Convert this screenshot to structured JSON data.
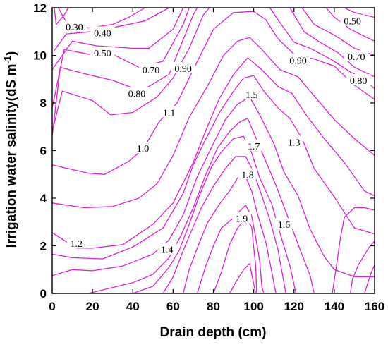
{
  "chart_data": {
    "type": "contour",
    "xlabel": "Drain depth (cm)",
    "ylabel": {
      "main": "Irrigation water salinity(dS m",
      "exponent": "-1",
      "close": ")"
    },
    "xlim": [
      0,
      160
    ],
    "ylim": [
      0,
      12
    ],
    "xticks": [
      "0",
      "20",
      "40",
      "60",
      "80",
      "100",
      "120",
      "140",
      "160"
    ],
    "yticks": [
      "0",
      "2",
      "4",
      "6",
      "8",
      "10",
      "12"
    ],
    "line_color": "#e020d8",
    "contour_labels": [
      {
        "text": "0.30",
        "x": 11,
        "y": 11.2
      },
      {
        "text": "0.40",
        "x": 25,
        "y": 10.95
      },
      {
        "text": "0.50",
        "x": 25,
        "y": 10.1
      },
      {
        "text": "0.70",
        "x": 49,
        "y": 9.4
      },
      {
        "text": "0.80",
        "x": 42,
        "y": 8.4
      },
      {
        "text": "0.90",
        "x": 65,
        "y": 9.45
      },
      {
        "text": "1.1",
        "x": 58,
        "y": 7.6
      },
      {
        "text": "1.0",
        "x": 45,
        "y": 6.1
      },
      {
        "text": "1.2",
        "x": 12,
        "y": 2.1
      },
      {
        "text": "1.4",
        "x": 57,
        "y": 1.85
      },
      {
        "text": "1.5",
        "x": 99,
        "y": 8.35
      },
      {
        "text": "1.7",
        "x": 100,
        "y": 6.2
      },
      {
        "text": "1.8",
        "x": 97,
        "y": 5.0
      },
      {
        "text": "1.9",
        "x": 94,
        "y": 3.15
      },
      {
        "text": "1.6",
        "x": 115,
        "y": 2.9
      },
      {
        "text": "1.3",
        "x": 120,
        "y": 6.35
      },
      {
        "text": "0.90",
        "x": 122,
        "y": 9.8
      },
      {
        "text": "0.50",
        "x": 149,
        "y": 11.45
      },
      {
        "text": "0.70",
        "x": 151,
        "y": 9.95
      },
      {
        "text": "0.80",
        "x": 152,
        "y": 8.95
      }
    ],
    "contours": [
      [
        [
          1,
          12
        ],
        [
          2,
          11.3
        ],
        [
          4,
          11.5
        ],
        [
          6,
          11.7
        ],
        [
          8,
          12
        ]
      ],
      [
        [
          3,
          12
        ],
        [
          7,
          11.4
        ],
        [
          18,
          11.15
        ],
        [
          30,
          11.3
        ],
        [
          38,
          11.6
        ],
        [
          46,
          12
        ]
      ],
      [
        [
          1,
          10.2
        ],
        [
          7,
          10.9
        ],
        [
          20,
          11.0
        ],
        [
          35,
          11.25
        ],
        [
          46,
          11.45
        ],
        [
          58,
          12
        ]
      ],
      [
        [
          0,
          9.4
        ],
        [
          10,
          10.6
        ],
        [
          22,
          10.4
        ],
        [
          40,
          10.3
        ],
        [
          48,
          10.3
        ],
        [
          60,
          11.1
        ],
        [
          65,
          12
        ]
      ],
      [
        [
          0,
          7.8
        ],
        [
          6,
          10.25
        ],
        [
          18,
          10.05
        ],
        [
          30,
          10.05
        ],
        [
          43,
          9.5
        ],
        [
          55,
          9.75
        ],
        [
          65,
          11.3
        ],
        [
          68,
          12
        ]
      ],
      [
        [
          0,
          6.6
        ],
        [
          4,
          9.5
        ],
        [
          15,
          9.25
        ],
        [
          30,
          8.95
        ],
        [
          44,
          8.5
        ],
        [
          58,
          9.2
        ],
        [
          70,
          11.7
        ],
        [
          72,
          12
        ]
      ],
      [
        [
          0,
          6.8
        ],
        [
          5,
          8.5
        ],
        [
          20,
          8.1
        ],
        [
          29,
          7.5
        ],
        [
          40,
          7.6
        ],
        [
          52,
          8.25
        ],
        [
          60,
          9.05
        ],
        [
          68,
          10.3
        ],
        [
          75,
          11.7
        ],
        [
          78,
          12
        ]
      ],
      [
        [
          0,
          5.4
        ],
        [
          18,
          5.05
        ],
        [
          26,
          5.0
        ],
        [
          38,
          5.55
        ],
        [
          45,
          6.05
        ],
        [
          53,
          7.2
        ],
        [
          62,
          8.0
        ],
        [
          70,
          9.4
        ],
        [
          80,
          11.1
        ],
        [
          90,
          11.8
        ],
        [
          100,
          11.85
        ],
        [
          106,
          11.5
        ],
        [
          112,
          10.7
        ],
        [
          120,
          10.05
        ],
        [
          130,
          9.85
        ],
        [
          140,
          9.55
        ],
        [
          150,
          8.75
        ],
        [
          160,
          8.15
        ]
      ],
      [
        [
          0,
          3.8
        ],
        [
          16,
          3.6
        ],
        [
          30,
          3.65
        ],
        [
          43,
          4.0
        ],
        [
          52,
          4.6
        ],
        [
          60,
          5.8
        ],
        [
          68,
          7.4
        ],
        [
          77,
          8.7
        ],
        [
          85,
          10.0
        ],
        [
          92,
          10.6
        ],
        [
          98,
          10.75
        ],
        [
          104,
          10.25
        ],
        [
          113,
          9.4
        ],
        [
          122,
          9.1
        ],
        [
          130,
          8.3
        ],
        [
          140,
          7.3
        ],
        [
          150,
          6.5
        ],
        [
          160,
          5.8
        ]
      ],
      [
        [
          0,
          2.55
        ],
        [
          12,
          1.9
        ],
        [
          20,
          1.9
        ],
        [
          35,
          2.05
        ],
        [
          50,
          2.9
        ],
        [
          60,
          3.8
        ],
        [
          70,
          5.5
        ],
        [
          77,
          7.0
        ],
        [
          83,
          8.2
        ],
        [
          90,
          9.2
        ],
        [
          97,
          9.9
        ],
        [
          104,
          9.4
        ],
        [
          112,
          8.7
        ],
        [
          119,
          8.4
        ],
        [
          126,
          7.5
        ],
        [
          135,
          6.5
        ],
        [
          145,
          5.5
        ],
        [
          155,
          4.3
        ],
        [
          160,
          4.1
        ]
      ],
      [
        [
          0,
          1.65
        ],
        [
          10,
          1.5
        ],
        [
          25,
          1.45
        ],
        [
          40,
          1.95
        ],
        [
          55,
          2.75
        ],
        [
          65,
          4.2
        ],
        [
          70,
          5.4
        ],
        [
          76,
          6.45
        ],
        [
          83,
          7.6
        ],
        [
          90,
          8.5
        ],
        [
          95,
          9.05
        ],
        [
          100,
          9.15
        ],
        [
          105,
          8.5
        ],
        [
          112,
          7.8
        ],
        [
          118,
          7.35
        ],
        [
          124,
          6.5
        ],
        [
          130,
          5.25
        ],
        [
          140,
          4.05
        ],
        [
          150,
          2.75
        ],
        [
          160,
          2.5
        ]
      ],
      [
        [
          0,
          0.75
        ],
        [
          10,
          1.0
        ],
        [
          20,
          0.95
        ],
        [
          35,
          1.15
        ],
        [
          50,
          1.65
        ],
        [
          58,
          2.25
        ],
        [
          65,
          3.3
        ],
        [
          72,
          4.9
        ],
        [
          80,
          6.3
        ],
        [
          86,
          7.3
        ],
        [
          92,
          7.95
        ],
        [
          98,
          8.25
        ],
        [
          103,
          7.5
        ],
        [
          110,
          6.3
        ],
        [
          115,
          5.1
        ],
        [
          122,
          4.1
        ],
        [
          128,
          2.7
        ],
        [
          135,
          1.55
        ],
        [
          140,
          1.0
        ],
        [
          150,
          0.7
        ],
        [
          160,
          0.7
        ]
      ],
      [
        [
          18,
          0
        ],
        [
          30,
          0.25
        ],
        [
          40,
          0.45
        ],
        [
          50,
          0.8
        ],
        [
          58,
          1.5
        ],
        [
          64,
          2.45
        ],
        [
          70,
          3.6
        ],
        [
          76,
          4.95
        ],
        [
          82,
          6.1
        ],
        [
          88,
          6.8
        ],
        [
          93,
          7.2
        ],
        [
          97,
          7.35
        ],
        [
          101,
          6.55
        ],
        [
          106,
          5.55
        ],
        [
          111,
          4.55
        ],
        [
          117,
          3.2
        ],
        [
          123,
          1.85
        ],
        [
          128,
          0.75
        ],
        [
          130,
          0
        ]
      ],
      [
        [
          40,
          0
        ],
        [
          50,
          0.3
        ],
        [
          58,
          1.1
        ],
        [
          63,
          1.8
        ],
        [
          68,
          2.9
        ],
        [
          73,
          4.1
        ],
        [
          79,
          5.3
        ],
        [
          84,
          5.95
        ],
        [
          90,
          6.5
        ],
        [
          95,
          6.6
        ],
        [
          99,
          5.9
        ],
        [
          103,
          4.85
        ],
        [
          109,
          3.75
        ],
        [
          113,
          2.55
        ],
        [
          118,
          1.15
        ],
        [
          121,
          0
        ]
      ],
      [
        [
          55,
          0
        ],
        [
          60,
          0.7
        ],
        [
          65,
          1.8
        ],
        [
          70,
          2.8
        ],
        [
          74,
          3.6
        ],
        [
          80,
          4.5
        ],
        [
          86,
          5.25
        ],
        [
          91,
          5.75
        ],
        [
          96,
          5.75
        ],
        [
          100,
          5.1
        ],
        [
          104,
          4.1
        ],
        [
          108,
          3.1
        ],
        [
          112,
          1.85
        ],
        [
          115,
          0.45
        ],
        [
          116,
          0
        ]
      ],
      [
        [
          65,
          0
        ],
        [
          68,
          1.0
        ],
        [
          72,
          1.9
        ],
        [
          77,
          2.95
        ],
        [
          83,
          3.75
        ],
        [
          88,
          4.3
        ],
        [
          92,
          4.85
        ],
        [
          96,
          4.9
        ],
        [
          99,
          4.3
        ],
        [
          102,
          3.3
        ],
        [
          106,
          2.15
        ],
        [
          109,
          0.9
        ],
        [
          111,
          0
        ]
      ],
      [
        [
          72,
          0
        ],
        [
          76,
          1.1
        ],
        [
          80,
          2.0
        ],
        [
          84,
          2.75
        ],
        [
          89,
          3.1
        ],
        [
          93,
          3.45
        ],
        [
          96,
          3.7
        ],
        [
          99,
          3.25
        ],
        [
          101,
          2.35
        ],
        [
          103,
          1.35
        ],
        [
          104,
          0.3
        ],
        [
          105,
          0
        ]
      ],
      [
        [
          80,
          0
        ],
        [
          84,
          0.9
        ],
        [
          88,
          2.05
        ],
        [
          92,
          2.75
        ],
        [
          96,
          3.15
        ],
        [
          99,
          2.8
        ],
        [
          100,
          1.95
        ],
        [
          101,
          1.15
        ],
        [
          101.5,
          0
        ]
      ],
      [
        [
          88,
          0
        ],
        [
          91,
          0.45
        ],
        [
          95,
          1.0
        ],
        [
          98,
          1.25
        ],
        [
          99,
          0.8
        ],
        [
          101,
          0
        ]
      ],
      [
        [
          139,
          0
        ],
        [
          141,
          1.1
        ],
        [
          143,
          2.3
        ],
        [
          145,
          3.2
        ],
        [
          150,
          3.6
        ],
        [
          155,
          3.6
        ],
        [
          160,
          3.5
        ]
      ],
      [
        [
          155,
          0
        ],
        [
          158,
          0.8
        ],
        [
          160,
          1.2
        ]
      ],
      [
        [
          148,
          0
        ],
        [
          149,
          0.6
        ],
        [
          152,
          1.2
        ],
        [
          157,
          1.9
        ],
        [
          160,
          2.2
        ]
      ],
      [
        [
          136,
          12
        ],
        [
          140,
          11.6
        ],
        [
          148,
          11.1
        ],
        [
          155,
          10.8
        ],
        [
          160,
          10.6
        ]
      ],
      [
        [
          118,
          12
        ],
        [
          125,
          11.0
        ],
        [
          132,
          10.6
        ],
        [
          142,
          10.1
        ],
        [
          150,
          9.5
        ],
        [
          160,
          9.1
        ]
      ],
      [
        [
          108,
          12
        ],
        [
          112,
          11.5
        ],
        [
          120,
          10.55
        ],
        [
          128,
          10.3
        ],
        [
          138,
          9.85
        ],
        [
          148,
          9.3
        ],
        [
          155,
          9.0
        ],
        [
          160,
          8.6
        ]
      ],
      [
        [
          124,
          12
        ],
        [
          130,
          11.3
        ],
        [
          140,
          10.85
        ],
        [
          150,
          10.3
        ],
        [
          160,
          10.0
        ]
      ],
      [
        [
          145,
          12
        ],
        [
          150,
          11.8
        ],
        [
          160,
          11.6
        ]
      ]
    ]
  }
}
